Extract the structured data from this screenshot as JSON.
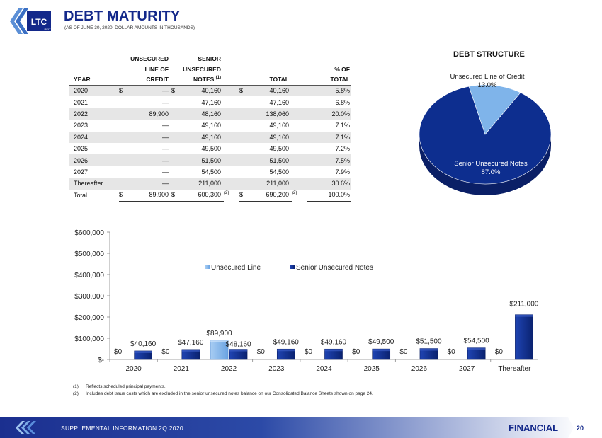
{
  "header": {
    "logo_text": "LTC",
    "logo_sub": "REIT",
    "title": "DEBT MATURITY",
    "subtitle": "(AS OF JUNE 30, 2020, DOLLAR AMOUNTS IN THOUSANDS)"
  },
  "table": {
    "header_rows": [
      [
        "",
        "UNSECURED",
        "SENIOR",
        "",
        ""
      ],
      [
        "",
        "LINE OF",
        "UNSECURED",
        "",
        "% OF"
      ],
      [
        "YEAR",
        "CREDIT",
        "NOTES",
        "TOTAL",
        "TOTAL"
      ]
    ],
    "notes_sup": "(1)",
    "rows": [
      {
        "year": "2020",
        "d1": "$",
        "credit": "—",
        "d2": "$",
        "notes": "40,160",
        "d3": "$",
        "total": "40,160",
        "pct": "5.8%"
      },
      {
        "year": "2021",
        "d1": "",
        "credit": "—",
        "d2": "",
        "notes": "47,160",
        "d3": "",
        "total": "47,160",
        "pct": "6.8%"
      },
      {
        "year": "2022",
        "d1": "",
        "credit": "89,900",
        "d2": "",
        "notes": "48,160",
        "d3": "",
        "total": "138,060",
        "pct": "20.0%"
      },
      {
        "year": "2023",
        "d1": "",
        "credit": "—",
        "d2": "",
        "notes": "49,160",
        "d3": "",
        "total": "49,160",
        "pct": "7.1%"
      },
      {
        "year": "2024",
        "d1": "",
        "credit": "—",
        "d2": "",
        "notes": "49,160",
        "d3": "",
        "total": "49,160",
        "pct": "7.1%"
      },
      {
        "year": "2025",
        "d1": "",
        "credit": "—",
        "d2": "",
        "notes": "49,500",
        "d3": "",
        "total": "49,500",
        "pct": "7.2%"
      },
      {
        "year": "2026",
        "d1": "",
        "credit": "—",
        "d2": "",
        "notes": "51,500",
        "d3": "",
        "total": "51,500",
        "pct": "7.5%"
      },
      {
        "year": "2027",
        "d1": "",
        "credit": "—",
        "d2": "",
        "notes": "54,500",
        "d3": "",
        "total": "54,500",
        "pct": "7.9%"
      },
      {
        "year": "Thereafter",
        "d1": "",
        "credit": "—",
        "d2": "",
        "notes": "211,000",
        "d3": "",
        "total": "211,000",
        "pct": "30.6%"
      }
    ],
    "total_row": {
      "year": "Total",
      "d1": "$",
      "credit": "89,900",
      "d2": "$",
      "notes": "600,300",
      "notes_note": "(2)",
      "d3": "$",
      "total": "690,200",
      "total_note": "(2)",
      "pct": "100.0%"
    }
  },
  "footnotes": [
    {
      "n": "(1)",
      "text": "Reflects scheduled principal payments."
    },
    {
      "n": "(2)",
      "text": "Includes debt issue costs which are excluded in the senior unsecured notes balance on our Consolidated Balance Sheets shown on page 24."
    }
  ],
  "footer": {
    "left": "SUPPLEMENTAL INFORMATION 2Q 2020",
    "section": "FINANCIAL",
    "page": "20"
  },
  "colors": {
    "brand": "#13288a",
    "senior": "#0d2e8f",
    "unsecured": "#7fb4ea"
  },
  "chart_data": [
    {
      "type": "pie",
      "title": "DEBT STRUCTURE",
      "slices": [
        {
          "label": "Unsecured Line of Credit",
          "value": 13.0,
          "display": "13.0%",
          "color": "#7fb4ea"
        },
        {
          "label": "Senior Unsecured Notes",
          "value": 87.0,
          "display": "87.0%",
          "color": "#0d2e8f"
        }
      ]
    },
    {
      "type": "bar",
      "categories": [
        "2020",
        "2021",
        "2022",
        "2023",
        "2024",
        "2025",
        "2026",
        "2027",
        "Thereafter"
      ],
      "series": [
        {
          "name": "Unsecured Line",
          "color": "#7fb4ea",
          "values": [
            0,
            0,
            89900,
            0,
            0,
            0,
            0,
            0,
            0
          ],
          "labels": [
            "$0",
            "$0",
            "$89,900",
            "$0",
            "$0",
            "$0",
            "$0",
            "$0",
            "$0"
          ]
        },
        {
          "name": "Senior Unsecured Notes",
          "color": "#0d2e8f",
          "values": [
            40160,
            47160,
            48160,
            49160,
            49160,
            49500,
            51500,
            54500,
            211000
          ],
          "labels": [
            "$40,160",
            "$47,160",
            "$48,160",
            "$49,160",
            "$49,160",
            "$49,500",
            "$51,500",
            "$54,500",
            "$211,000"
          ]
        }
      ],
      "yticks": [
        "$-",
        "$100,000",
        "$200,000",
        "$300,000",
        "$400,000",
        "$500,000",
        "$600,000"
      ],
      "ylim": [
        0,
        600000
      ],
      "legend": "top-center",
      "grid": false
    }
  ]
}
